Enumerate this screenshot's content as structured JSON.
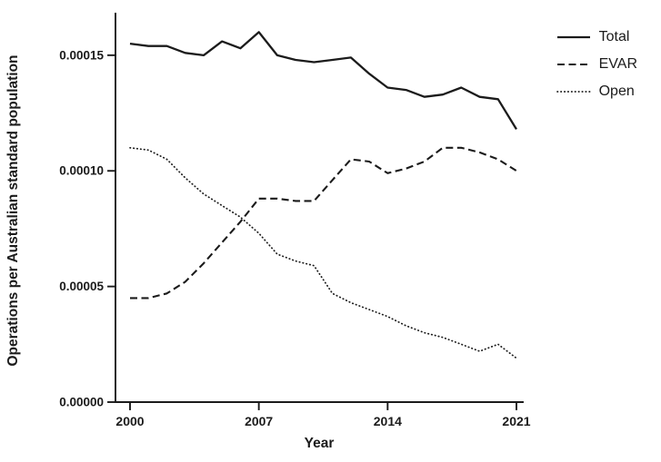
{
  "figure": {
    "background": "#ffffff",
    "line_color": "#1b1b1b"
  },
  "chart_data": {
    "type": "line",
    "title": "",
    "xlabel": "Year",
    "ylabel": "Operations per Australian standard population",
    "legend_position": "right",
    "grid": false,
    "x": [
      2000,
      2001,
      2002,
      2003,
      2004,
      2005,
      2006,
      2007,
      2008,
      2009,
      2010,
      2011,
      2012,
      2013,
      2014,
      2015,
      2016,
      2017,
      2018,
      2019,
      2020,
      2021
    ],
    "series": [
      {
        "name": "Total",
        "style": "solid",
        "values": [
          0.000155,
          0.000154,
          0.000154,
          0.000151,
          0.00015,
          0.000156,
          0.000153,
          0.00016,
          0.00015,
          0.000148,
          0.000147,
          0.000148,
          0.000149,
          0.000142,
          0.000136,
          0.000135,
          0.000132,
          0.000133,
          0.000136,
          0.000132,
          0.000131,
          0.000118
        ]
      },
      {
        "name": "EVAR",
        "style": "dashed",
        "values": [
          4.5e-05,
          4.5e-05,
          4.7e-05,
          5.2e-05,
          6e-05,
          6.9e-05,
          7.8e-05,
          8.8e-05,
          8.8e-05,
          8.7e-05,
          8.7e-05,
          9.6e-05,
          0.000105,
          0.000104,
          9.9e-05,
          0.000101,
          0.000104,
          0.00011,
          0.00011,
          0.000108,
          0.000105,
          0.0001
        ]
      },
      {
        "name": "Open",
        "style": "dotted",
        "values": [
          0.00011,
          0.000109,
          0.000105,
          9.7e-05,
          9e-05,
          8.5e-05,
          8e-05,
          7.3e-05,
          6.4e-05,
          6.1e-05,
          5.9e-05,
          4.7e-05,
          4.3e-05,
          4e-05,
          3.7e-05,
          3.3e-05,
          3e-05,
          2.8e-05,
          2.5e-05,
          2.2e-05,
          2.5e-05,
          1.9e-05
        ]
      }
    ],
    "xlim": [
      2000,
      2021
    ],
    "ylim": [
      0,
      0.000168
    ],
    "xticks": [
      2000,
      2007,
      2014,
      2021
    ],
    "xtick_labels": [
      "2000",
      "2007",
      "2014",
      "2021"
    ],
    "yticks": [
      0,
      5e-05,
      0.0001,
      0.00015
    ],
    "ytick_labels": [
      "0.00000",
      "0.00005",
      "0.00010",
      "0.00015"
    ]
  }
}
